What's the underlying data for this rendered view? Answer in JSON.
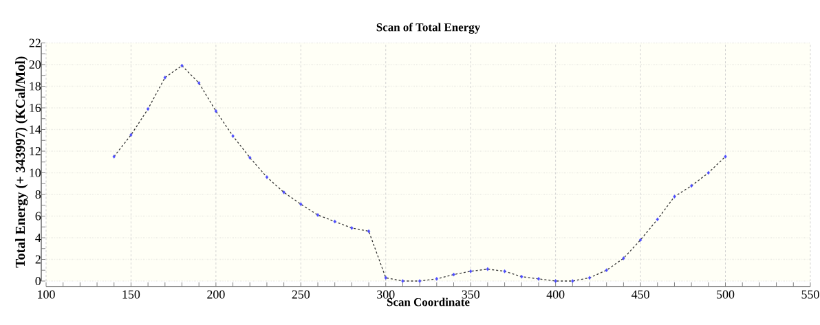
{
  "chart_data": {
    "type": "line",
    "title": "Scan of Total Energy",
    "xlabel": "Scan Coordinate",
    "ylabel": "Total Energy (+ 343997) (KCal/Mol)",
    "x": [
      140,
      150,
      160,
      170,
      180,
      190,
      200,
      210,
      220,
      230,
      240,
      250,
      260,
      270,
      280,
      290,
      300,
      310,
      320,
      330,
      340,
      350,
      360,
      370,
      380,
      390,
      400,
      410,
      420,
      430,
      440,
      450,
      460,
      470,
      480,
      490,
      500
    ],
    "series": [
      {
        "color": "#333333",
        "colors": [
          "#4d4dff",
          "#4d4dff",
          "#4d4dff",
          "#4d4dff",
          "#4d4dff",
          "#4d4dff",
          "#4d4dff",
          "#4d4dff",
          "#4d4dff",
          "#4d4dff",
          "#4d4dff",
          "#4d4dff",
          "#4d4dff",
          "#4d4dff",
          "#4d4dff",
          "#4d4dff",
          "#4d4dff",
          "#4d4dff",
          "#4d4dff",
          "#4d4dff",
          "#4d4dff",
          "#4d4dff",
          "#4d4dff",
          "#4d4dff",
          "#4d4dff",
          "#4d4dff",
          "#4d4dff",
          "#4d4dff",
          "#4d4dff",
          "#4d4dff",
          "#4d4dff",
          "#4d4dff",
          "#4d4dff",
          "#4d4dff",
          "#4d4dff",
          "#4d4dff",
          "#4d4dff"
        ],
        "values": [
          11.5,
          13.5,
          15.9,
          18.8,
          19.9,
          18.3,
          15.7,
          13.4,
          11.4,
          9.6,
          8.2,
          7.1,
          6.1,
          5.5,
          4.9,
          4.6,
          0.3,
          0.0,
          0.0,
          0.2,
          0.6,
          0.9,
          1.1,
          0.9,
          0.4,
          0.2,
          0.0,
          0.0,
          0.3,
          1.0,
          2.1,
          3.8,
          5.7,
          7.8,
          8.8,
          10.0,
          11.5
        ]
      }
    ],
    "xlim": [
      100,
      550
    ],
    "ylim": [
      0,
      22
    ],
    "xticks": [
      100,
      150,
      200,
      250,
      300,
      350,
      400,
      450,
      500,
      550
    ],
    "yticks": [
      0,
      2,
      4,
      6,
      8,
      10,
      12,
      14,
      16,
      18,
      20,
      22
    ],
    "grid": true,
    "marker": "diamond",
    "line_style": "dashed"
  }
}
